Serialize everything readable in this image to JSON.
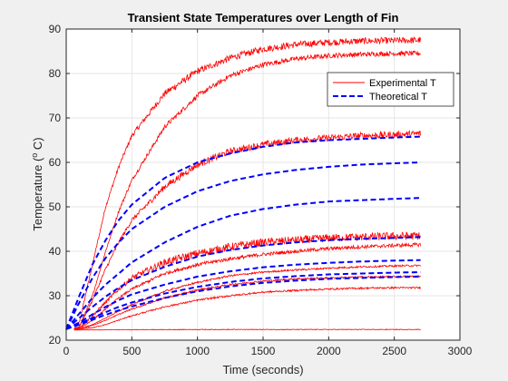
{
  "chart_data": {
    "type": "line",
    "title": "Transient State Temperatures over Length of Fin",
    "xlabel": "Time (seconds)",
    "ylabel_main": "Temperature (",
    "ylabel_sup": "o",
    "ylabel_tail": " C)",
    "xlim": [
      0,
      3000
    ],
    "ylim": [
      20,
      90
    ],
    "xticks": [
      0,
      500,
      1000,
      1500,
      2000,
      2500,
      3000
    ],
    "yticks": [
      20,
      30,
      40,
      50,
      60,
      70,
      80,
      90
    ],
    "grid": true,
    "legend_position": "top-right",
    "colors": {
      "experimental": "#ff0000",
      "theoretical": "#0000ff",
      "axes_bg": "#ffffff",
      "figure_bg": "#f0f0f0",
      "grid": "#e6e6e6"
    },
    "series": [
      {
        "name": "Experimental T",
        "style": "solid",
        "t_start": 60,
        "t_end": 2700,
        "noise": 0.75,
        "x": [
          60,
          100,
          200,
          300,
          400,
          500,
          750,
          1000,
          1250,
          1500,
          1750,
          2000,
          2250,
          2500,
          2700
        ],
        "y": [
          22.5,
          24,
          37,
          50,
          59,
          66,
          75.5,
          80.5,
          83.5,
          85.5,
          86.5,
          87,
          87.3,
          87.4,
          87.5
        ]
      },
      {
        "style": "solid",
        "t_start": 60,
        "t_end": 2700,
        "noise": 0.55,
        "x": [
          60,
          100,
          200,
          300,
          400,
          500,
          750,
          1000,
          1250,
          1500,
          1750,
          2000,
          2250,
          2500,
          2700
        ],
        "y": [
          22.5,
          23,
          30,
          40,
          49,
          56,
          68,
          75,
          79.5,
          82,
          83.3,
          84,
          84.3,
          84.5,
          84.5
        ]
      },
      {
        "style": "solid",
        "t_start": 60,
        "t_end": 2700,
        "noise": 0.75,
        "x": [
          60,
          100,
          200,
          300,
          400,
          500,
          750,
          1000,
          1250,
          1500,
          1750,
          2000,
          2250,
          2500,
          2700
        ],
        "y": [
          22.5,
          23,
          29,
          36,
          42,
          47,
          54.5,
          59.5,
          62.5,
          64,
          65,
          65.5,
          66,
          66.2,
          66.5
        ]
      },
      {
        "style": "solid",
        "t_start": 60,
        "t_end": 2700,
        "noise": 0.9,
        "x": [
          60,
          100,
          200,
          300,
          400,
          500,
          750,
          1000,
          1250,
          1500,
          1750,
          2000,
          2250,
          2500,
          2700
        ],
        "y": [
          22.5,
          22.8,
          25.5,
          28.5,
          31.5,
          34,
          37.5,
          39.5,
          41,
          42,
          42.5,
          43,
          43.2,
          43.4,
          43.5
        ]
      },
      {
        "style": "solid",
        "t_start": 60,
        "t_end": 2700,
        "noise": 0.4,
        "x": [
          60,
          100,
          200,
          300,
          400,
          500,
          750,
          1000,
          1250,
          1500,
          1750,
          2000,
          2250,
          2500,
          2700
        ],
        "y": [
          22.5,
          22.6,
          24.5,
          27,
          29.5,
          31.5,
          35,
          37,
          38.3,
          39.3,
          40,
          40.6,
          41,
          41.3,
          41.5
        ]
      },
      {
        "style": "solid",
        "t_start": 60,
        "t_end": 2700,
        "noise": 0.2,
        "x": [
          60,
          100,
          200,
          300,
          400,
          500,
          750,
          1000,
          1250,
          1500,
          1750,
          2000,
          2250,
          2500,
          2700
        ],
        "y": [
          22.5,
          22.5,
          23.5,
          25,
          26.5,
          28,
          31,
          33,
          34.5,
          35.3,
          35.8,
          36.2,
          36.5,
          36.7,
          36.8
        ]
      },
      {
        "style": "solid",
        "t_start": 60,
        "t_end": 2700,
        "noise": 0.2,
        "x": [
          60,
          100,
          200,
          300,
          400,
          500,
          750,
          1000,
          1250,
          1500,
          1750,
          2000,
          2250,
          2500,
          2700
        ],
        "y": [
          22.5,
          22.5,
          23.3,
          24.5,
          25.8,
          27,
          29.5,
          31.3,
          32.5,
          33.3,
          33.8,
          34,
          34.2,
          34.3,
          34.4
        ]
      },
      {
        "style": "solid",
        "t_start": 60,
        "t_end": 2700,
        "noise": 0.2,
        "x": [
          60,
          100,
          200,
          300,
          400,
          500,
          750,
          1000,
          1250,
          1500,
          1750,
          2000,
          2250,
          2500,
          2700
        ],
        "y": [
          22.5,
          22.5,
          22.8,
          23.5,
          24.5,
          25.5,
          27.5,
          29,
          30,
          30.8,
          31.2,
          31.5,
          31.7,
          31.8,
          31.8
        ]
      },
      {
        "style": "solid",
        "t_start": 60,
        "t_end": 2700,
        "noise": 0.08,
        "x": [
          60,
          1000,
          2000,
          2700
        ],
        "y": [
          22.3,
          22.4,
          22.4,
          22.4
        ]
      },
      {
        "name": "Theoretical T",
        "style": "dashed",
        "t_start": 0,
        "t_end": 2700,
        "noise": 0,
        "x": [
          0,
          100,
          200,
          300,
          400,
          500,
          750,
          1000,
          1250,
          1500,
          1750,
          2000,
          2250,
          2500,
          2700
        ],
        "y": [
          22.5,
          30,
          37,
          42.5,
          47,
          50.5,
          56.5,
          60,
          62,
          63.5,
          64.5,
          65,
          65.3,
          65.6,
          65.8
        ]
      },
      {
        "style": "dashed",
        "t_start": 0,
        "t_end": 2700,
        "noise": 0,
        "x": [
          0,
          100,
          200,
          300,
          400,
          500,
          750,
          1000,
          1250,
          1500,
          1750,
          2000,
          2250,
          2500,
          2700
        ],
        "y": [
          22.5,
          28.5,
          34,
          38.5,
          42,
          45,
          50,
          53.5,
          55.8,
          57.3,
          58.3,
          59,
          59.5,
          59.8,
          60
        ]
      },
      {
        "style": "dashed",
        "t_start": 0,
        "t_end": 2700,
        "noise": 0,
        "x": [
          0,
          100,
          200,
          300,
          400,
          500,
          750,
          1000,
          1250,
          1500,
          1750,
          2000,
          2250,
          2500,
          2700
        ],
        "y": [
          22.5,
          26,
          29.5,
          32.5,
          35,
          37.5,
          42,
          45.5,
          48,
          49.5,
          50.5,
          51.2,
          51.5,
          51.8,
          52
        ]
      },
      {
        "style": "dashed",
        "t_start": 0,
        "t_end": 2700,
        "noise": 0,
        "x": [
          0,
          100,
          200,
          300,
          400,
          500,
          750,
          1000,
          1250,
          1500,
          1750,
          2000,
          2250,
          2500,
          2700
        ],
        "y": [
          22.5,
          25,
          27.5,
          29.8,
          31.8,
          33.5,
          36.5,
          38.8,
          40.3,
          41.3,
          42,
          42.5,
          42.8,
          43,
          43.2
        ]
      },
      {
        "style": "dashed",
        "t_start": 0,
        "t_end": 2700,
        "noise": 0,
        "x": [
          0,
          100,
          200,
          300,
          400,
          500,
          750,
          1000,
          1250,
          1500,
          1750,
          2000,
          2250,
          2500,
          2700
        ],
        "y": [
          22.5,
          24,
          25.8,
          27.5,
          29,
          30.3,
          32.5,
          34.3,
          35.5,
          36.4,
          37,
          37.4,
          37.7,
          37.9,
          38
        ]
      },
      {
        "style": "dashed",
        "t_start": 0,
        "t_end": 2700,
        "noise": 0,
        "x": [
          0,
          100,
          200,
          300,
          400,
          500,
          750,
          1000,
          1250,
          1500,
          1750,
          2000,
          2250,
          2500,
          2700
        ],
        "y": [
          22.5,
          23.7,
          25,
          26.3,
          27.5,
          28.5,
          30.5,
          32,
          33.1,
          33.9,
          34.4,
          34.8,
          35,
          35.2,
          35.3
        ]
      },
      {
        "style": "dashed",
        "t_start": 0,
        "t_end": 2700,
        "noise": 0,
        "x": [
          0,
          100,
          200,
          300,
          400,
          500,
          750,
          1000,
          1250,
          1500,
          1750,
          2000,
          2250,
          2500,
          2700
        ],
        "y": [
          22.5,
          23.5,
          24.6,
          25.7,
          26.7,
          27.6,
          29.5,
          31,
          32.1,
          32.9,
          33.4,
          33.8,
          34,
          34.2,
          34.3
        ]
      }
    ]
  }
}
